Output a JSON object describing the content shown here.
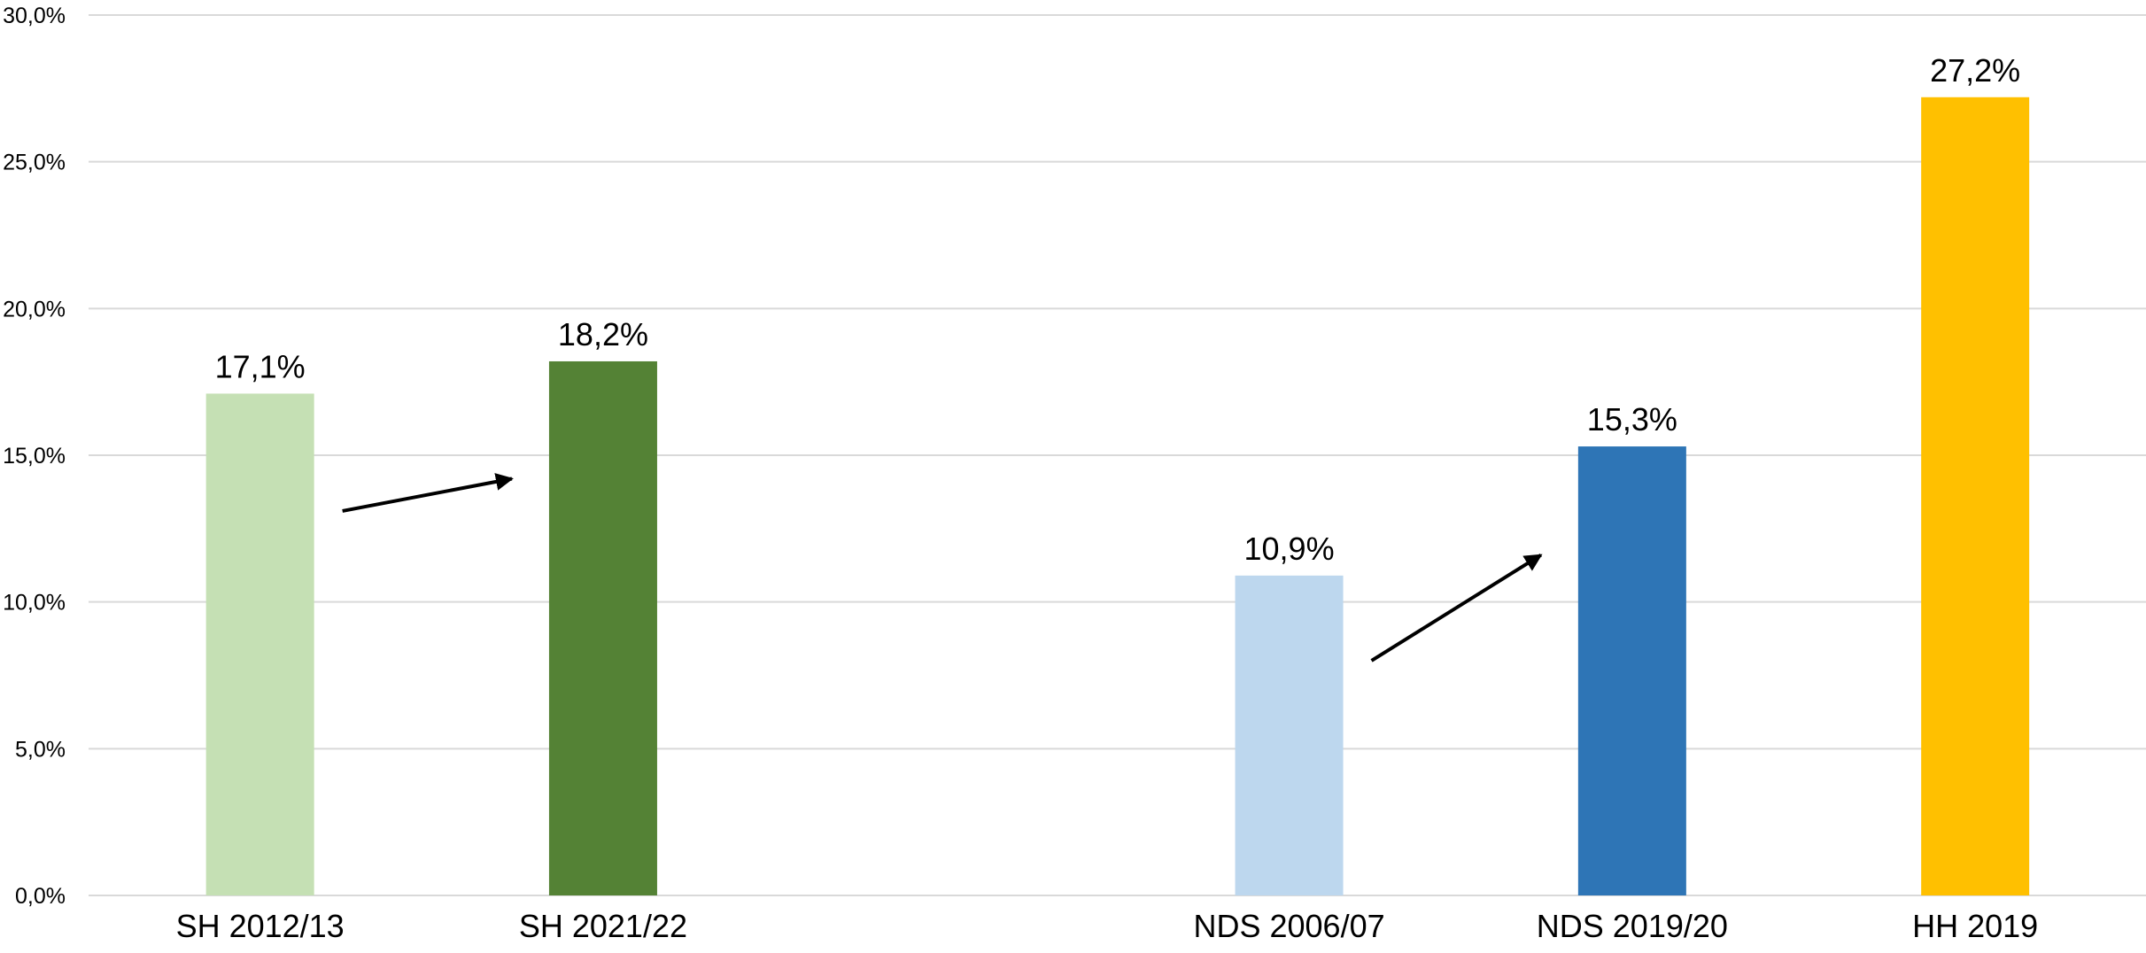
{
  "chart_data": {
    "type": "bar",
    "title": "",
    "xlabel": "",
    "ylabel": "",
    "ylim": [
      0,
      30
    ],
    "y_tick_values": [
      0,
      5,
      10,
      15,
      20,
      25,
      30
    ],
    "y_tick_labels": [
      "0,0%",
      "5,0%",
      "10,0%",
      "15,0%",
      "20,0%",
      "25,0%",
      "30,0%"
    ],
    "grid": true,
    "legend": "none",
    "categories": [
      "SH 2012/13",
      "SH 2021/22",
      "",
      "NDS 2006/07",
      "NDS 2019/20",
      "HH 2019"
    ],
    "values": [
      17.1,
      18.2,
      null,
      10.9,
      15.3,
      27.2
    ],
    "data_labels": [
      "17,1%",
      "18,2%",
      "",
      "10,9%",
      "15,3%",
      "27,2%"
    ],
    "colors": [
      "#c5e0b4",
      "#548235",
      "",
      "#bdd7ee",
      "#2e75b6",
      "#ffc000"
    ],
    "annotations": [
      {
        "type": "arrow",
        "from_category": 0,
        "to_category": 1,
        "from_value": 13.1,
        "to_value": 14.2
      },
      {
        "type": "arrow",
        "from_category": 3,
        "to_category": 4,
        "from_value": 8.0,
        "to_value": 11.6
      }
    ]
  }
}
